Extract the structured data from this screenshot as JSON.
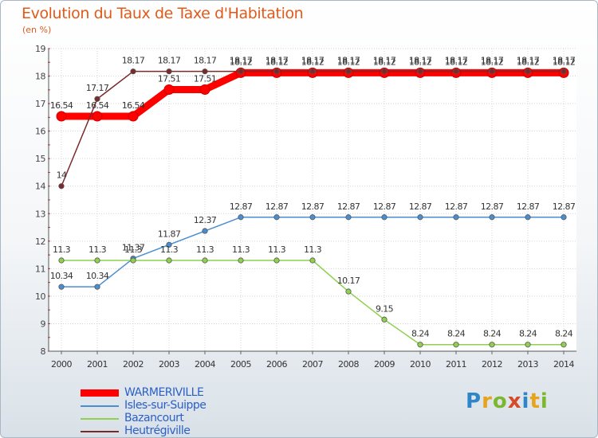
{
  "header": {
    "title": "Evolution du Taux de Taxe d'Habitation",
    "subtitle": "(en %)"
  },
  "brand": {
    "name": "Proxiti",
    "colors": [
      "#2e86c9",
      "#e8a31c",
      "#7cb82f",
      "#d64a2a",
      "#2e86c9",
      "#e8a31c",
      "#7cb82f"
    ]
  },
  "chart_data": {
    "type": "line",
    "x": [
      2000,
      2001,
      2002,
      2003,
      2004,
      2005,
      2006,
      2007,
      2008,
      2009,
      2010,
      2011,
      2012,
      2013,
      2014
    ],
    "ylim": [
      8,
      19
    ],
    "yticks": [
      8,
      9,
      10,
      11,
      12,
      13,
      14,
      15,
      16,
      17,
      18,
      19
    ],
    "grid": true,
    "legend_position": "bottom-left",
    "series": [
      {
        "name": "WARMERIVILLE",
        "color": "#ff0000",
        "width": 9,
        "values": [
          16.54,
          16.54,
          16.54,
          17.51,
          17.51,
          18.12,
          18.12,
          18.12,
          18.12,
          18.12,
          18.12,
          18.12,
          18.12,
          18.12,
          18.12
        ],
        "labels": [
          "16.54",
          "16.54",
          "16.54",
          "17.51",
          "17.51",
          "18.12",
          "18.12",
          "18.12",
          "18.12",
          "18.12",
          "18.12",
          "18.12",
          "18.12",
          "18.12",
          "18.12"
        ]
      },
      {
        "name": "Isles-sur-Suippe",
        "color": "#4a8ed2",
        "width": 1.5,
        "values": [
          10.34,
          10.34,
          11.37,
          11.87,
          12.37,
          12.87,
          12.87,
          12.87,
          12.87,
          12.87,
          12.87,
          12.87,
          12.87,
          12.87,
          12.87
        ],
        "labels": [
          "10.34",
          "10.34",
          "11.37",
          "11.87",
          "12.37",
          "12.87",
          "12.87",
          "12.87",
          "12.87",
          "12.87",
          "12.87",
          "12.87",
          "12.87",
          "12.87",
          "12.87"
        ]
      },
      {
        "name": "Bazancourt",
        "color": "#8fd14f",
        "width": 1.5,
        "values": [
          11.3,
          11.3,
          11.3,
          11.3,
          11.3,
          11.3,
          11.3,
          11.3,
          10.17,
          9.15,
          8.24,
          8.24,
          8.24,
          8.24,
          8.24
        ],
        "labels": [
          "11.3",
          "11.3",
          "11.3",
          "11.3",
          "11.3",
          "11.3",
          "11.3",
          "11.3",
          "10.17",
          "9.15",
          "8.24",
          "8.24",
          "8.24",
          "8.24",
          "8.24"
        ]
      },
      {
        "name": "Heutrégiville",
        "color": "#7a2a2a",
        "width": 1.5,
        "values": [
          14,
          17.17,
          18.17,
          18.17,
          18.17,
          18.17,
          18.17,
          18.17,
          18.17,
          18.17,
          18.17,
          18.17,
          18.17,
          18.17,
          18.17
        ],
        "labels": [
          "14",
          "17.17",
          "18.17",
          "18.17",
          "18.17",
          "18.17",
          "18.17",
          "18.17",
          "18.17",
          "18.17",
          "18.17",
          "18.17",
          "18.17",
          "18.17",
          "18.17"
        ]
      }
    ]
  }
}
